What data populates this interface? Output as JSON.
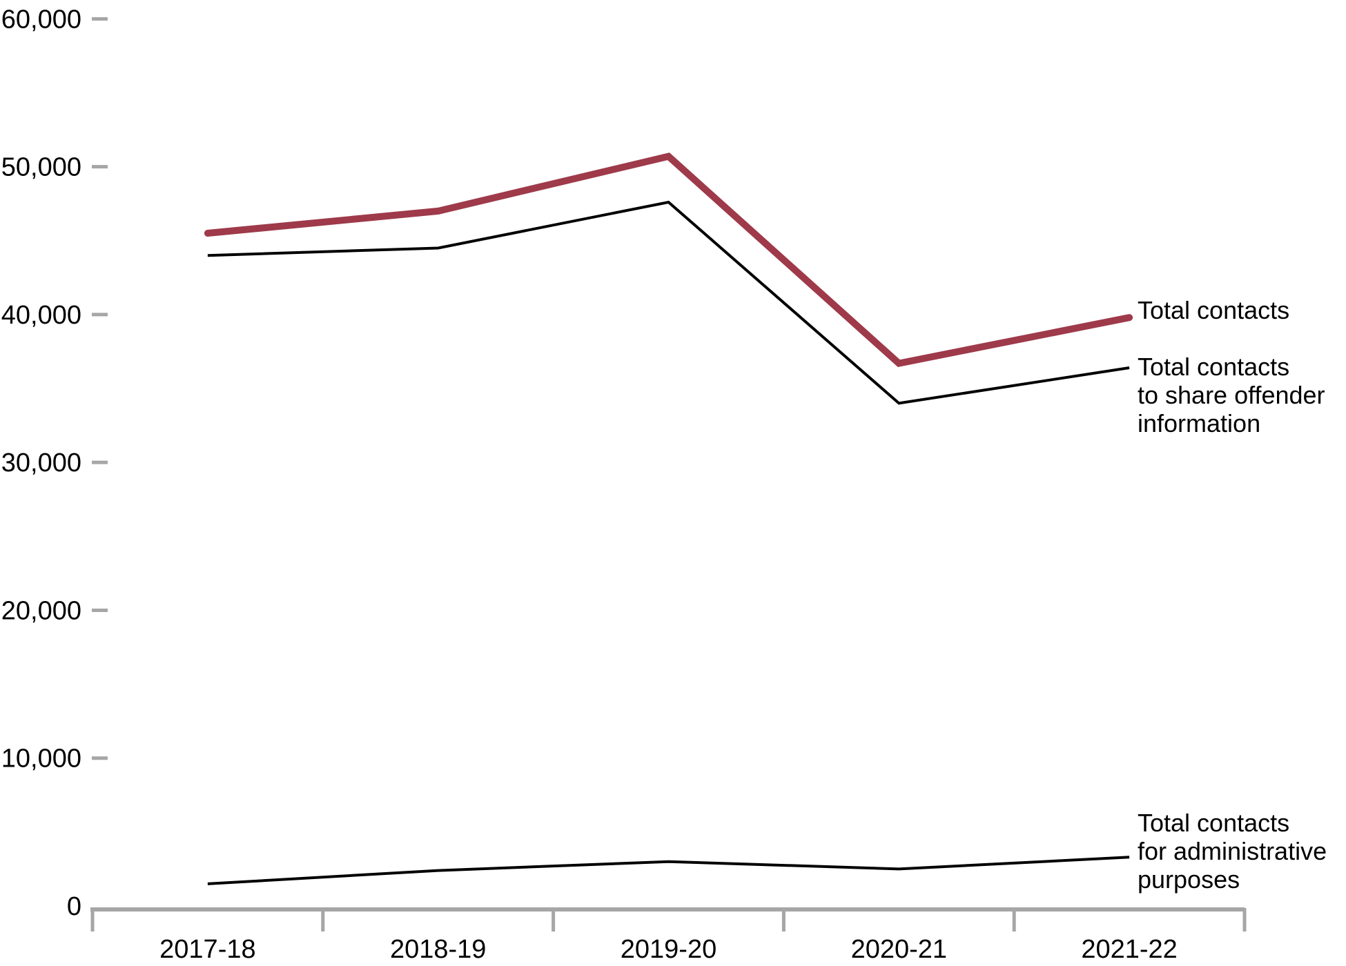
{
  "chart_data": {
    "type": "line",
    "title": "",
    "xlabel": "",
    "ylabel": "",
    "grid": "off",
    "legend_position": "right-of-line-ends",
    "x_categories": [
      "2017-18",
      "2018-19",
      "2019-20",
      "2020-21",
      "2021-22"
    ],
    "y_ticks": [
      0,
      10000,
      20000,
      30000,
      40000,
      50000,
      60000
    ],
    "y_tick_labels": [
      "0",
      "10,000",
      "20,000",
      "30,000",
      "40,000",
      "50,000",
      "60,000"
    ],
    "ylim": [
      0,
      60000
    ],
    "series": [
      {
        "name": "Total contacts",
        "label_lines": [
          "Total contacts"
        ],
        "color": "#9e3a4a",
        "line_width": 10,
        "values": [
          45500,
          47000,
          50700,
          36700,
          39800
        ]
      },
      {
        "name": "Total contacts to share offender information",
        "label_lines": [
          "Total contacts",
          "to share offender",
          "information"
        ],
        "color": "#000000",
        "line_width": 4,
        "values": [
          44000,
          44500,
          47600,
          34000,
          36400
        ]
      },
      {
        "name": "Total contacts for administrative purposes",
        "label_lines": [
          "Total contacts",
          "for administrative",
          "purposes"
        ],
        "color": "#000000",
        "line_width": 4,
        "values": [
          1500,
          2400,
          3000,
          2500,
          3300
        ]
      }
    ]
  },
  "colors": {
    "accent_red": "#9e3a4a",
    "axis_gray": "#a6a6a6",
    "text": "#000000"
  }
}
